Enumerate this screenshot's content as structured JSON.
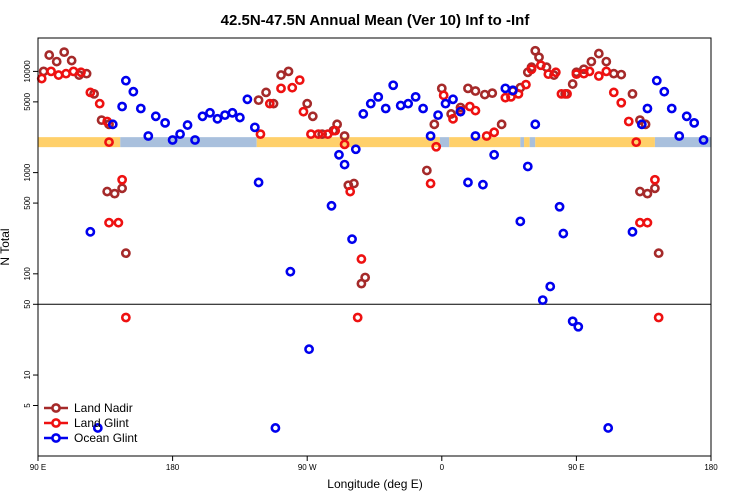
{
  "chart_data": {
    "type": "scatter",
    "title": "42.5N-47.5N Annual Mean (Ver 10)   Inf to -Inf",
    "xlabel": "Longitude (deg E)",
    "ylabel": "N Total",
    "xlim": [
      0,
      360
    ],
    "ylim_log10": [
      0.2,
      4.33
    ],
    "y_scale": "log",
    "x_ticks": [
      {
        "value": 0,
        "label": "90 E"
      },
      {
        "value": 72,
        "label": "180"
      },
      {
        "value": 144,
        "label": "90 W"
      },
      {
        "value": 216,
        "label": "0"
      },
      {
        "value": 288,
        "label": "90 E"
      },
      {
        "value": 360,
        "label": "180"
      }
    ],
    "y_ticks": [
      {
        "value": 5,
        "label": "5"
      },
      {
        "value": 10,
        "label": "10"
      },
      {
        "value": 50,
        "label": "50"
      },
      {
        "value": 100,
        "label": "100"
      },
      {
        "value": 500,
        "label": "500"
      },
      {
        "value": 1000,
        "label": "1000"
      },
      {
        "value": 5000,
        "label": "5000"
      },
      {
        "value": 10000,
        "label": "10000"
      }
    ],
    "hline": 50,
    "band": {
      "y": 2000,
      "colors": {
        "land": "#ffd06a",
        "ocean": "#a9c0dd"
      },
      "segments": [
        {
          "type": "land",
          "x0": 0,
          "x1": 44
        },
        {
          "type": "ocean",
          "x0": 44,
          "x1": 117
        },
        {
          "type": "land",
          "x0": 117,
          "x1": 215
        },
        {
          "type": "ocean",
          "x0": 215,
          "x1": 220
        },
        {
          "type": "land",
          "x0": 220,
          "x1": 258
        },
        {
          "type": "ocean",
          "x0": 258,
          "x1": 260
        },
        {
          "type": "land",
          "x0": 260,
          "x1": 263
        },
        {
          "type": "ocean",
          "x0": 263,
          "x1": 266
        },
        {
          "type": "land",
          "x0": 266,
          "x1": 330
        },
        {
          "type": "ocean",
          "x0": 330,
          "x1": 360
        }
      ]
    },
    "legend": {
      "position": "bottom-left"
    },
    "series": [
      {
        "name": "Land Nadir",
        "color": "#a52a2a",
        "points": [
          [
            3,
            10000
          ],
          [
            6,
            14500
          ],
          [
            10,
            12500
          ],
          [
            14,
            15500
          ],
          [
            18,
            12800
          ],
          [
            22,
            9200
          ],
          [
            26,
            9500
          ],
          [
            30,
            6000
          ],
          [
            34,
            3300
          ],
          [
            38,
            3000
          ],
          [
            37,
            650
          ],
          [
            41,
            620
          ],
          [
            45,
            700
          ],
          [
            47,
            160
          ],
          [
            118,
            5200
          ],
          [
            122,
            6200
          ],
          [
            126,
            4800
          ],
          [
            130,
            9200
          ],
          [
            134,
            10000
          ],
          [
            144,
            4800
          ],
          [
            147,
            3600
          ],
          [
            152,
            2400
          ],
          [
            158,
            2600
          ],
          [
            160,
            3000
          ],
          [
            164,
            2300
          ],
          [
            166,
            750
          ],
          [
            169,
            780
          ],
          [
            173,
            80
          ],
          [
            175,
            92
          ],
          [
            208,
            1050
          ],
          [
            212,
            3000
          ],
          [
            216,
            6800
          ],
          [
            221,
            3800
          ],
          [
            226,
            4400
          ],
          [
            230,
            6800
          ],
          [
            234,
            6400
          ],
          [
            239,
            5900
          ],
          [
            243,
            6100
          ],
          [
            248,
            3000
          ],
          [
            254,
            6400
          ],
          [
            258,
            6900
          ],
          [
            262,
            9800
          ],
          [
            264,
            11000
          ],
          [
            266,
            16000
          ],
          [
            268,
            13800
          ],
          [
            272,
            11000
          ],
          [
            276,
            9200
          ],
          [
            282,
            6000
          ],
          [
            286,
            7500
          ],
          [
            288,
            9800
          ],
          [
            292,
            10500
          ],
          [
            296,
            12500
          ],
          [
            300,
            15000
          ],
          [
            304,
            12500
          ],
          [
            308,
            9500
          ],
          [
            312,
            9300
          ],
          [
            318,
            6000
          ],
          [
            322,
            3300
          ],
          [
            325,
            3000
          ],
          [
            322,
            650
          ],
          [
            326,
            620
          ],
          [
            330,
            700
          ],
          [
            332,
            160
          ]
        ]
      },
      {
        "name": "Land Glint",
        "color": "#ee1111",
        "points": [
          [
            2,
            8500
          ],
          [
            7,
            10000
          ],
          [
            11,
            9200
          ],
          [
            15,
            9500
          ],
          [
            19,
            10000
          ],
          [
            23,
            9800
          ],
          [
            28,
            6200
          ],
          [
            33,
            4800
          ],
          [
            37,
            3200
          ],
          [
            38,
            2000
          ],
          [
            38,
            320
          ],
          [
            43,
            320
          ],
          [
            45,
            850
          ],
          [
            47,
            37
          ],
          [
            119,
            2400
          ],
          [
            124,
            4800
          ],
          [
            130,
            6800
          ],
          [
            136,
            6900
          ],
          [
            140,
            8200
          ],
          [
            142,
            4000
          ],
          [
            146,
            2400
          ],
          [
            150,
            2400
          ],
          [
            155,
            2400
          ],
          [
            159,
            2600
          ],
          [
            164,
            1900
          ],
          [
            167,
            650
          ],
          [
            171,
            37
          ],
          [
            173,
            140
          ],
          [
            210,
            780
          ],
          [
            213,
            1800
          ],
          [
            217,
            5800
          ],
          [
            222,
            3400
          ],
          [
            226,
            4100
          ],
          [
            231,
            4500
          ],
          [
            234,
            4100
          ],
          [
            240,
            2300
          ],
          [
            244,
            2500
          ],
          [
            250,
            5500
          ],
          [
            253,
            5600
          ],
          [
            257,
            6000
          ],
          [
            261,
            7400
          ],
          [
            264,
            10500
          ],
          [
            269,
            11500
          ],
          [
            273,
            9400
          ],
          [
            277,
            9800
          ],
          [
            280,
            6000
          ],
          [
            283,
            6000
          ],
          [
            288,
            9400
          ],
          [
            292,
            9500
          ],
          [
            295,
            10000
          ],
          [
            300,
            9000
          ],
          [
            304,
            10000
          ],
          [
            308,
            6200
          ],
          [
            312,
            4900
          ],
          [
            316,
            3200
          ],
          [
            320,
            2000
          ],
          [
            322,
            320
          ],
          [
            326,
            320
          ],
          [
            330,
            850
          ],
          [
            332,
            37
          ]
        ]
      },
      {
        "name": "Ocean Glint",
        "color": "#0000ee",
        "points": [
          [
            28,
            260
          ],
          [
            32,
            3
          ],
          [
            40,
            3000
          ],
          [
            45,
            4500
          ],
          [
            47,
            8100
          ],
          [
            51,
            6300
          ],
          [
            55,
            4300
          ],
          [
            59,
            2300
          ],
          [
            63,
            3600
          ],
          [
            68,
            3100
          ],
          [
            72,
            2100
          ],
          [
            76,
            2400
          ],
          [
            80,
            2950
          ],
          [
            84,
            2100
          ],
          [
            88,
            3600
          ],
          [
            92,
            3900
          ],
          [
            96,
            3400
          ],
          [
            100,
            3700
          ],
          [
            104,
            3900
          ],
          [
            108,
            3500
          ],
          [
            112,
            5300
          ],
          [
            116,
            2800
          ],
          [
            118,
            800
          ],
          [
            127,
            3
          ],
          [
            135,
            105
          ],
          [
            145,
            18
          ],
          [
            157,
            470
          ],
          [
            161,
            1500
          ],
          [
            164,
            1200
          ],
          [
            168,
            220
          ],
          [
            170,
            1700
          ],
          [
            174,
            3800
          ],
          [
            178,
            4800
          ],
          [
            182,
            5600
          ],
          [
            186,
            4300
          ],
          [
            190,
            7300
          ],
          [
            194,
            4600
          ],
          [
            198,
            4800
          ],
          [
            202,
            5600
          ],
          [
            206,
            4300
          ],
          [
            210,
            2300
          ],
          [
            214,
            3700
          ],
          [
            218,
            4800
          ],
          [
            222,
            5300
          ],
          [
            226,
            4000
          ],
          [
            230,
            800
          ],
          [
            234,
            2300
          ],
          [
            238,
            760
          ],
          [
            244,
            1500
          ],
          [
            250,
            6800
          ],
          [
            254,
            6500
          ],
          [
            258,
            330
          ],
          [
            262,
            1150
          ],
          [
            266,
            3000
          ],
          [
            270,
            55
          ],
          [
            274,
            75
          ],
          [
            279,
            460
          ],
          [
            281,
            250
          ],
          [
            286,
            34
          ],
          [
            289,
            30
          ],
          [
            305,
            3
          ],
          [
            318,
            260
          ],
          [
            323,
            3000
          ],
          [
            326,
            4300
          ],
          [
            331,
            8100
          ],
          [
            335,
            6300
          ],
          [
            339,
            4300
          ],
          [
            343,
            2300
          ],
          [
            347,
            3600
          ],
          [
            351,
            3100
          ],
          [
            356,
            2100
          ]
        ]
      }
    ]
  }
}
